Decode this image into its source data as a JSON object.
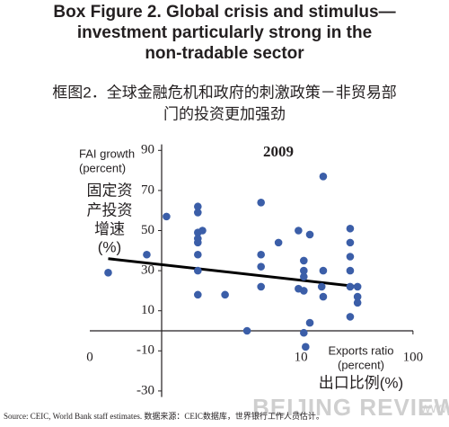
{
  "chart_data": {
    "type": "scatter",
    "title": [
      "Box Figure 2. Global crisis and stimulus—",
      "investment particularly strong in the",
      "non-tradable sector"
    ],
    "title_cn": [
      "框图2．全球金融危机和政府的刺激政策－非贸易部",
      "门的投资更加强劲"
    ],
    "y_label": [
      "FAI growth",
      "(percent)"
    ],
    "y_label_cn": [
      "固定资",
      "产投资",
      "增速",
      "(%)"
    ],
    "x_label": [
      "Exports ratio",
      "(percent)"
    ],
    "x_label_cn": "出口比例(%)",
    "annotation": "2009",
    "x_zero_label": "0",
    "source": "Source: CEIC, World Bank staff estimates.    数据来源：CEIC数据库，世界银行工作人员估计。",
    "watermark": "BEIJING REVIEW",
    "watermark_url": "www.b",
    "x_scale": "log",
    "xlim": [
      0.09,
      145
    ],
    "ylim": [
      -33,
      93
    ],
    "xticks": [
      10,
      100
    ],
    "yticks": [
      90,
      70,
      50,
      30,
      10,
      -10,
      -30
    ],
    "color": "#3b5ea8",
    "x": [
      0.19,
      0.42,
      0.63,
      1.2,
      1.2,
      1.2,
      1.2,
      1.2,
      1.2,
      1.2,
      1.2,
      1.32,
      2.1,
      3.3,
      4.4,
      4.4,
      4.4,
      4.4,
      6.3,
      9.5,
      9.5,
      10.6,
      10.6,
      10.6,
      10.6,
      10.6,
      11,
      12,
      12,
      15.8,
      15.8,
      15.8,
      15.3,
      27.5,
      27.5,
      27.5,
      27.5,
      27.5,
      27.5,
      32,
      32,
      32
    ],
    "values": [
      29,
      38,
      57,
      62,
      59,
      49,
      46,
      44,
      38,
      30,
      18,
      50,
      18,
      0,
      64,
      38,
      32,
      22,
      44,
      50,
      21,
      35,
      30,
      27,
      20,
      -1,
      -8,
      48,
      4,
      77,
      30,
      17,
      22,
      51,
      44,
      37,
      30,
      22,
      7,
      22,
      17,
      14
    ],
    "trend": {
      "color": "#000000",
      "x": [
        0.19,
        33
      ],
      "values": [
        36,
        22
      ]
    }
  }
}
